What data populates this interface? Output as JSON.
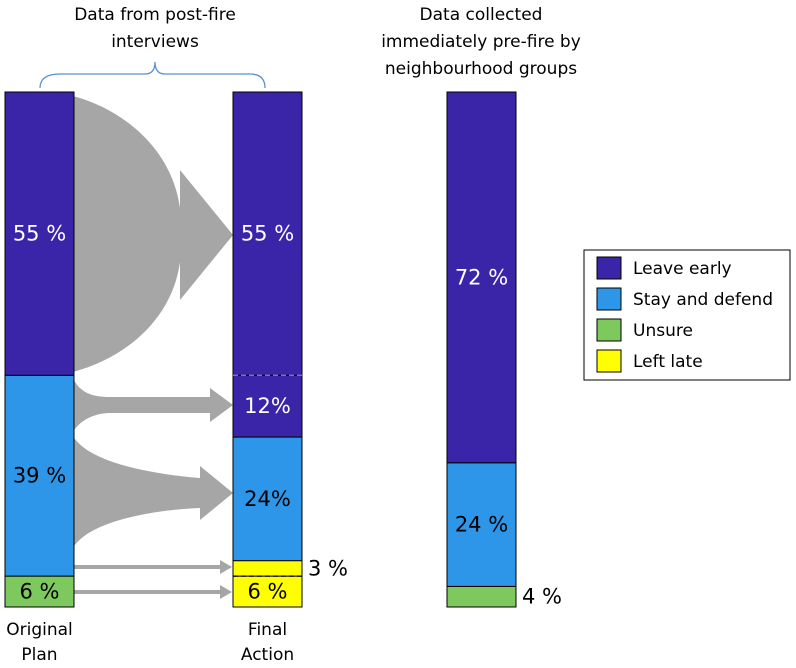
{
  "chart_data": {
    "type": "bar",
    "stacked": true,
    "headers": [
      "Data from post-fire\ninterviews",
      "Data collected\nimmediately pre-fire by\nneighbourhood groups"
    ],
    "categories": [
      "Original\nPlan",
      "Final\nAction",
      null
    ],
    "ylim": [
      0,
      100
    ],
    "series": [
      {
        "name": "Leave early",
        "color": "#3a25a8",
        "values": [
          55,
          55,
          72
        ],
        "value_labels": [
          "55 %",
          "55 %",
          "72 %"
        ]
      },
      {
        "color": "#3a25a8",
        "values": [
          null,
          12,
          null
        ],
        "value_labels": [
          null,
          "12%",
          null
        ]
      },
      {
        "name": "Stay and defend",
        "color": "#2e96e8",
        "values": [
          39,
          24,
          24
        ],
        "value_labels": [
          "39 %",
          "24%",
          "24 %"
        ]
      },
      {
        "name": "Unsure",
        "color": "#7dc95e",
        "values": [
          6,
          null,
          4
        ],
        "value_labels": [
          "6 %",
          null,
          "4 %"
        ]
      },
      {
        "color": "#ffff00",
        "values": [
          null,
          3,
          null
        ],
        "value_labels": [
          null,
          "3 %",
          null
        ]
      },
      {
        "name": "Left late",
        "color": "#ffff00",
        "values": [
          null,
          6,
          null
        ],
        "value_labels": [
          null,
          "6 %",
          null
        ]
      }
    ]
  }
}
